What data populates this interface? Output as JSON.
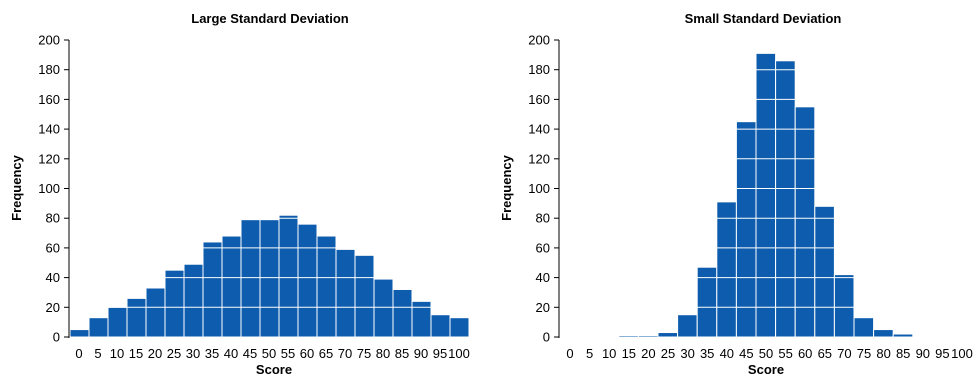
{
  "chart_data": [
    {
      "type": "bar",
      "title": "Large Standard Deviation",
      "xlabel": "Score",
      "ylabel": "Frequency",
      "categories": [
        "0",
        "5",
        "10",
        "15",
        "20",
        "25",
        "30",
        "35",
        "40",
        "45",
        "50",
        "55",
        "60",
        "65",
        "70",
        "75",
        "80",
        "85",
        "90",
        "95",
        "100"
      ],
      "values": [
        5,
        13,
        20,
        26,
        33,
        45,
        49,
        64,
        68,
        79,
        79,
        82,
        76,
        68,
        59,
        55,
        39,
        32,
        24,
        15,
        13
      ],
      "ylim": [
        0,
        200
      ],
      "yticks": [
        "0",
        "20",
        "40",
        "60",
        "80",
        "100",
        "120",
        "140",
        "160",
        "180",
        "200"
      ],
      "grid": "white lines inside bars at every y tick",
      "color": "#0d5cad"
    },
    {
      "type": "bar",
      "title": "Small Standard Deviation",
      "xlabel": "Score",
      "ylabel": "Frequency",
      "categories": [
        "0",
        "5",
        "10",
        "15",
        "20",
        "25",
        "30",
        "35",
        "40",
        "45",
        "50",
        "55",
        "60",
        "65",
        "70",
        "75",
        "80",
        "85",
        "90",
        "95",
        "100"
      ],
      "values": [
        0,
        0,
        0,
        1,
        1,
        3,
        15,
        47,
        91,
        145,
        191,
        186,
        155,
        88,
        42,
        13,
        5,
        2,
        0,
        0,
        0
      ],
      "ylim": [
        0,
        200
      ],
      "yticks": [
        "0",
        "20",
        "40",
        "60",
        "80",
        "100",
        "120",
        "140",
        "160",
        "180",
        "200"
      ],
      "grid": "white lines inside bars at every y tick",
      "color": "#0d5cad"
    }
  ]
}
